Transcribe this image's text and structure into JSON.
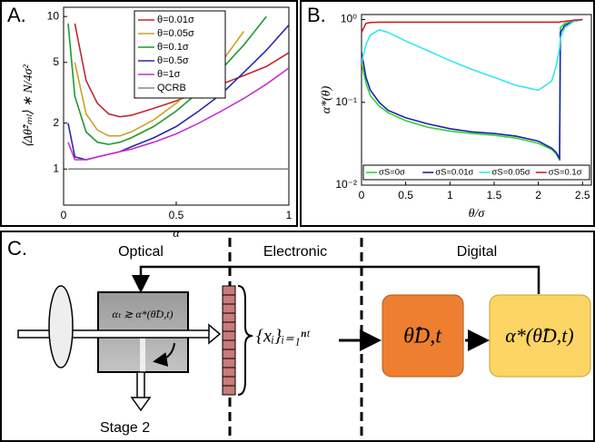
{
  "chart_data": [
    {
      "type": "line",
      "title": "A.",
      "x_label": "α",
      "y_label": "⟨Δθ̂²ₘₗ⟩ ∗ N/4σ²",
      "log_y": true,
      "xlim": [
        0,
        1
      ],
      "ylim": [
        0.58,
        11.5
      ],
      "xticks": [
        0,
        0.5,
        1
      ],
      "yticks": [
        1,
        2,
        5,
        10
      ],
      "legend_position": "upper right",
      "x": [
        0.02,
        0.05,
        0.1,
        0.15,
        0.2,
        0.25,
        0.3,
        0.4,
        0.5,
        0.6,
        0.7,
        0.8,
        0.9,
        1.0
      ],
      "series": [
        {
          "name": "θ=0.01σ",
          "color": "#c0262d",
          "values": [
            null,
            9,
            3.8,
            2.7,
            2.3,
            2.2,
            2.25,
            2.5,
            2.8,
            3.2,
            3.6,
            4.1,
            4.7,
            5.8
          ]
        },
        {
          "name": "θ=0.05σ",
          "color": "#c9a227",
          "values": [
            null,
            5,
            2.3,
            1.8,
            1.65,
            1.65,
            1.75,
            2.1,
            2.7,
            3.6,
            5,
            8,
            null,
            null
          ]
        },
        {
          "name": "θ=0.1σ",
          "color": "#1f9a2e",
          "values": [
            9,
            3,
            1.75,
            1.5,
            1.45,
            1.5,
            1.6,
            1.9,
            2.4,
            3.2,
            4.5,
            6.5,
            10,
            null
          ]
        },
        {
          "name": "θ=0.5σ",
          "color": "#2a2aa8",
          "values": [
            2,
            1.2,
            1.15,
            1.2,
            1.25,
            1.3,
            1.4,
            1.6,
            1.9,
            2.4,
            3.1,
            4.3,
            6,
            8.8
          ]
        },
        {
          "name": "θ=1σ",
          "color": "#c531c9",
          "values": [
            1.5,
            1.15,
            1.15,
            1.2,
            1.25,
            1.3,
            1.35,
            1.5,
            1.7,
            2,
            2.4,
            2.9,
            3.6,
            4.6
          ]
        },
        {
          "name": "QCRB",
          "color": "#888888",
          "values": [
            1,
            1,
            1,
            1,
            1,
            1,
            1,
            1,
            1,
            1,
            1,
            1,
            1,
            1
          ]
        }
      ]
    },
    {
      "type": "line",
      "title": "B.",
      "x_label": "θ/σ",
      "y_label": "α*(θ)",
      "log_y": true,
      "xlim": [
        0,
        2.6
      ],
      "ylim": [
        0.01,
        1.15
      ],
      "xticks": [
        0,
        0.5,
        1,
        1.5,
        2,
        2.5
      ],
      "yticks": [
        {
          "value": 0.01,
          "label": "10⁻²"
        },
        {
          "value": 0.1,
          "label": "10⁻¹"
        },
        {
          "value": 1,
          "label": "10⁰"
        }
      ],
      "legend_position": "lower center",
      "x": [
        0,
        0.05,
        0.1,
        0.2,
        0.3,
        0.5,
        0.75,
        1,
        1.25,
        1.5,
        1.75,
        2,
        2.15,
        2.2,
        2.24,
        2.25,
        2.3,
        2.4,
        2.5
      ],
      "series": [
        {
          "name": "σS=0σ",
          "color": "#2fd52f",
          "values": [
            0.3,
            0.17,
            0.12,
            0.09,
            0.075,
            0.06,
            0.05,
            0.045,
            0.042,
            0.04,
            0.037,
            0.032,
            0.027,
            0.024,
            0.02,
            0.8,
            0.9,
            0.95,
            1
          ]
        },
        {
          "name": "σS=0.01σ",
          "color": "#1f1fb0",
          "values": [
            0.4,
            0.2,
            0.14,
            0.1,
            0.08,
            0.065,
            0.055,
            0.048,
            0.044,
            0.042,
            0.039,
            0.034,
            0.028,
            0.025,
            0.021,
            0.7,
            0.85,
            0.95,
            1
          ]
        },
        {
          "name": "σS=0.05σ",
          "color": "#33e6f0",
          "values": [
            0.3,
            0.5,
            0.65,
            0.75,
            0.7,
            0.55,
            0.42,
            0.32,
            0.25,
            0.2,
            0.16,
            0.14,
            0.18,
            0.27,
            0.45,
            0.6,
            0.8,
            0.95,
            1
          ]
        },
        {
          "name": "σS=0.1σ",
          "color": "#d42020",
          "values": [
            0.7,
            0.9,
            0.92,
            0.93,
            0.93,
            0.93,
            0.93,
            0.93,
            0.93,
            0.93,
            0.93,
            0.93,
            0.93,
            0.93,
            0.93,
            0.94,
            0.95,
            0.98,
            1
          ]
        }
      ]
    }
  ],
  "diagram": {
    "label": "C.",
    "sections": [
      "Optical",
      "Electronic",
      "Digital"
    ],
    "condition": "αₜ ≳ α*(θ̂D,t)",
    "measurements": "{xᵢ}ᵢ₌₁ⁿᵗ",
    "estimate": "θ̂D,t",
    "update": "α*(θ̂D,t)",
    "output": "Stage 2"
  }
}
